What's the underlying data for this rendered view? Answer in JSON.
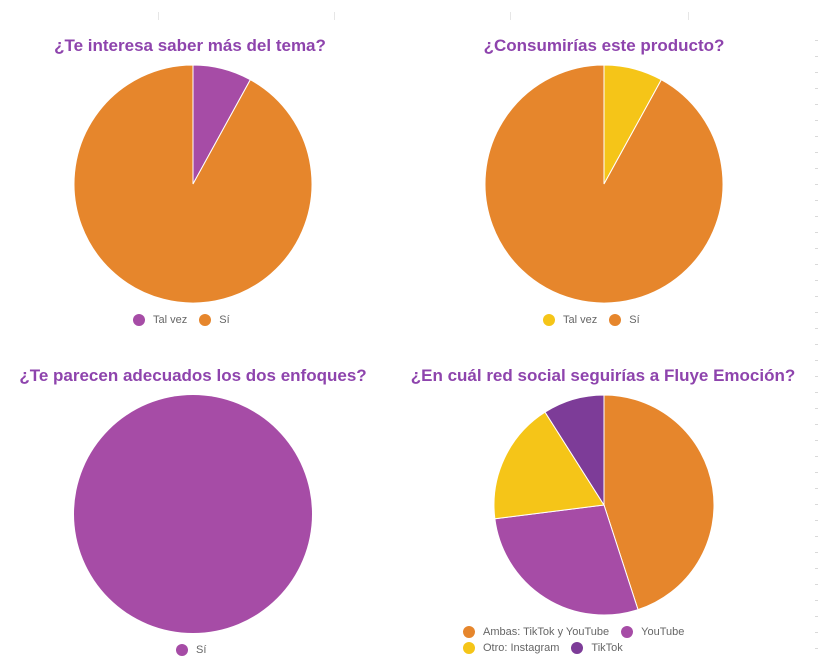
{
  "chart_data": [
    {
      "type": "pie",
      "title": "¿Te interesa saber más del tema?",
      "slices": [
        {
          "label": "Tal vez",
          "value": 8,
          "color": "#a64ca6"
        },
        {
          "label": "Sí",
          "value": 92,
          "color": "#e6862c"
        }
      ],
      "legend_rows": [
        [
          "Tal vez",
          "Sí"
        ]
      ]
    },
    {
      "type": "pie",
      "title": "¿Consumirías este producto?",
      "slices": [
        {
          "label": "Tal vez",
          "value": 8,
          "color": "#f5c518"
        },
        {
          "label": "Sí",
          "value": 92,
          "color": "#e6862c"
        }
      ],
      "legend_rows": [
        [
          "Tal vez",
          "Sí"
        ]
      ]
    },
    {
      "type": "pie",
      "title": "¿Te parecen adecuados los dos enfoques?",
      "slices": [
        {
          "label": "Sí",
          "value": 100,
          "color": "#a64ca6"
        }
      ],
      "legend_rows": [
        [
          "Sí"
        ]
      ]
    },
    {
      "type": "pie",
      "title": "¿En cuál red social seguirías a Fluye Emoción?",
      "slices": [
        {
          "label": "Ambas: TikTok y YouTube",
          "value": 45,
          "color": "#e6862c"
        },
        {
          "label": "YouTube",
          "value": 28,
          "color": "#a64ca6"
        },
        {
          "label": "Otro: Instagram",
          "value": 18,
          "color": "#f5c518"
        },
        {
          "label": "TikTok",
          "value": 9,
          "color": "#7d3c98"
        }
      ],
      "legend_rows": [
        [
          "Ambas: TikTok y YouTube",
          "YouTube"
        ],
        [
          "Otro: Instagram",
          "TikTok"
        ]
      ]
    }
  ]
}
